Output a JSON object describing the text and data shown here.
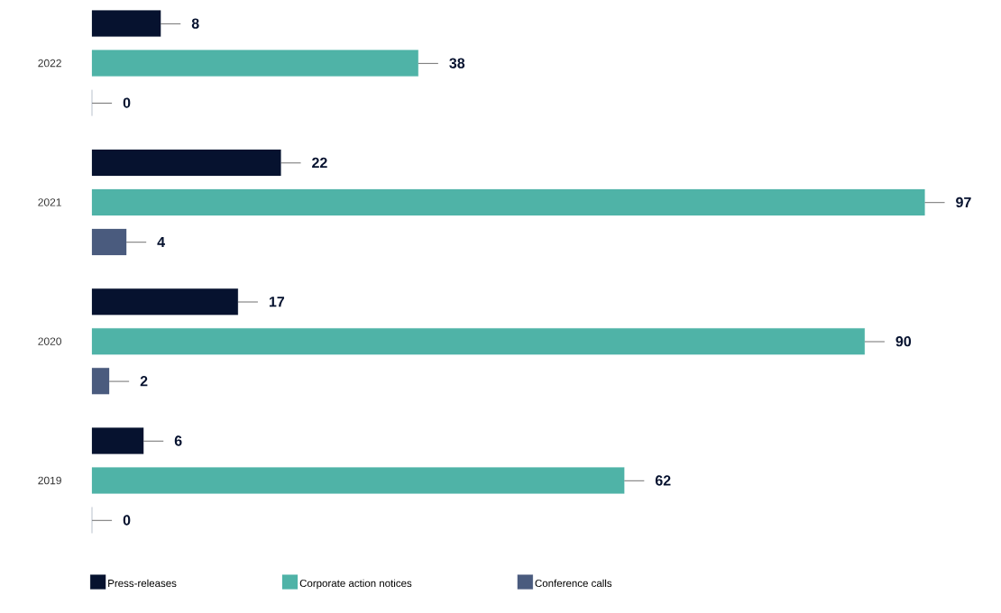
{
  "chart_data": {
    "type": "bar",
    "orientation": "horizontal",
    "categories": [
      "2022",
      "2021",
      "2020",
      "2019"
    ],
    "series": [
      {
        "name": "Press-releases",
        "color": "#06122f",
        "values": [
          8,
          22,
          17,
          6
        ]
      },
      {
        "name": "Corporate action notices",
        "color": "#4fb3a7",
        "values": [
          38,
          97,
          90,
          62
        ]
      },
      {
        "name": "Conference calls",
        "color": "#4a5b7e",
        "values": [
          0,
          4,
          2,
          0
        ]
      }
    ],
    "data_labels": true,
    "legend": "bottom"
  }
}
